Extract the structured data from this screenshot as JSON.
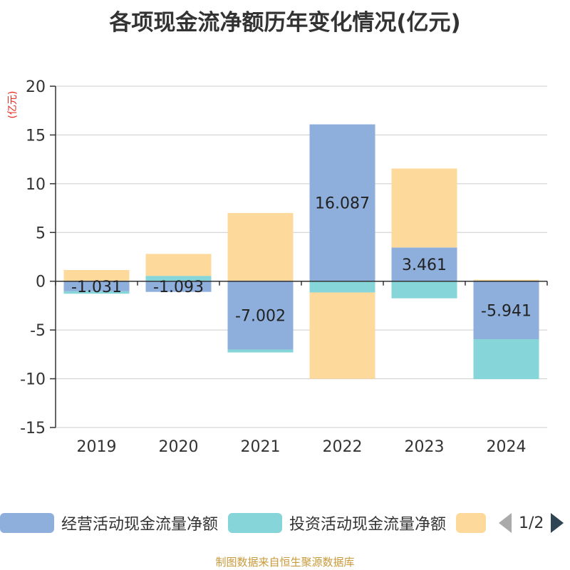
{
  "chart_data": {
    "type": "bar",
    "stacked": true,
    "title": "各项现金流净额历年变化情况(亿元)",
    "ylabel": "(亿元)",
    "categories": [
      "2019",
      "2020",
      "2021",
      "2022",
      "2023",
      "2024"
    ],
    "ylim": [
      -15,
      20
    ],
    "yticks": [
      20,
      15,
      10,
      5,
      0,
      -5,
      -10,
      -15
    ],
    "grid": true,
    "series": [
      {
        "name": "经营活动现金流量净额",
        "color": "#8eaedc",
        "values": [
          -1.031,
          -1.093,
          -7.002,
          16.087,
          3.461,
          -5.941
        ],
        "labels": [
          "-1.031",
          "-1.093",
          "-7.002",
          "16.087",
          "3.461",
          "-5.941"
        ]
      },
      {
        "name": "投资活动现金流量净额",
        "color": "#86d5d8",
        "values": [
          -0.25,
          0.55,
          -0.3,
          -1.15,
          -1.75,
          -4.1
        ]
      },
      {
        "name": "",
        "color": "#fdd99b",
        "values": [
          1.15,
          2.25,
          7.0,
          -8.85,
          8.1,
          0.15
        ]
      }
    ]
  },
  "legend": {
    "items": [
      "经营活动现金流量净额",
      "投资活动现金流量净额",
      ""
    ],
    "page": "1/2"
  },
  "source": "制图数据来自恒生聚源数据库"
}
